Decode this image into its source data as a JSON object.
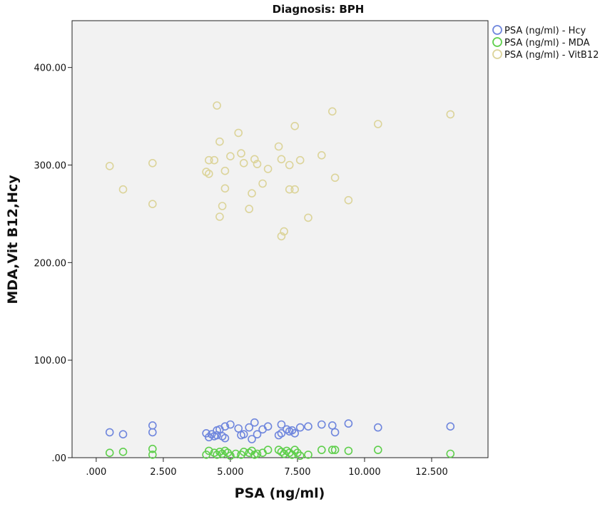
{
  "chart_data": {
    "type": "scatter",
    "title": "Diagnosis: BPH",
    "xlabel": "PSA (ng/ml)",
    "ylabel": "MDA,Vit B12,Hcy",
    "xlim": [
      -0.9,
      14.6
    ],
    "ylim": [
      0,
      448
    ],
    "x_ticks": [
      ".000",
      "2.500",
      "5.000",
      "7.500",
      "10.000",
      "12.500"
    ],
    "x_tick_values": [
      0,
      2.5,
      5,
      7.5,
      10,
      12.5
    ],
    "y_ticks": [
      ".00",
      "100.00",
      "200.00",
      "300.00",
      "400.00"
    ],
    "y_tick_values": [
      0,
      100,
      200,
      300,
      400
    ],
    "grid": false,
    "legend_position": "top-right",
    "series": [
      {
        "name": "PSA (ng/ml) - Hcy",
        "color": "#6f86dd",
        "points": [
          [
            0.5,
            26
          ],
          [
            1.0,
            24
          ],
          [
            2.1,
            33
          ],
          [
            2.1,
            26
          ],
          [
            4.1,
            25
          ],
          [
            4.2,
            21
          ],
          [
            4.3,
            24
          ],
          [
            4.4,
            22
          ],
          [
            4.5,
            28
          ],
          [
            4.5,
            23
          ],
          [
            4.6,
            29
          ],
          [
            4.7,
            22
          ],
          [
            4.8,
            32
          ],
          [
            4.8,
            20
          ],
          [
            5.0,
            34
          ],
          [
            5.3,
            30
          ],
          [
            5.4,
            23
          ],
          [
            5.5,
            24
          ],
          [
            5.7,
            31
          ],
          [
            5.8,
            19
          ],
          [
            5.9,
            36
          ],
          [
            6.0,
            24
          ],
          [
            6.2,
            29
          ],
          [
            6.4,
            32
          ],
          [
            6.8,
            23
          ],
          [
            6.9,
            34
          ],
          [
            6.9,
            25
          ],
          [
            7.1,
            29
          ],
          [
            7.2,
            27
          ],
          [
            7.3,
            28
          ],
          [
            7.4,
            25
          ],
          [
            7.6,
            31
          ],
          [
            7.9,
            32
          ],
          [
            8.4,
            34
          ],
          [
            8.8,
            33
          ],
          [
            8.9,
            26
          ],
          [
            9.4,
            35
          ],
          [
            10.5,
            31
          ],
          [
            13.2,
            32
          ]
        ]
      },
      {
        "name": "PSA (ng/ml) - MDA",
        "color": "#5fcf4c",
        "points": [
          [
            0.5,
            5
          ],
          [
            1.0,
            6
          ],
          [
            2.1,
            9
          ],
          [
            2.1,
            3
          ],
          [
            4.1,
            3
          ],
          [
            4.2,
            7
          ],
          [
            4.4,
            5
          ],
          [
            4.5,
            3
          ],
          [
            4.6,
            6
          ],
          [
            4.7,
            4
          ],
          [
            4.8,
            7
          ],
          [
            4.9,
            5
          ],
          [
            5.0,
            2
          ],
          [
            5.2,
            4
          ],
          [
            5.4,
            3
          ],
          [
            5.5,
            6
          ],
          [
            5.7,
            5
          ],
          [
            5.8,
            7
          ],
          [
            5.9,
            3
          ],
          [
            6.0,
            4
          ],
          [
            6.2,
            5
          ],
          [
            6.4,
            8
          ],
          [
            6.8,
            8
          ],
          [
            6.9,
            6
          ],
          [
            7.0,
            4
          ],
          [
            7.1,
            7
          ],
          [
            7.2,
            5
          ],
          [
            7.3,
            3
          ],
          [
            7.4,
            8
          ],
          [
            7.5,
            5
          ],
          [
            7.6,
            2
          ],
          [
            7.9,
            3
          ],
          [
            8.4,
            8
          ],
          [
            8.8,
            8
          ],
          [
            8.9,
            8
          ],
          [
            9.4,
            7
          ],
          [
            10.5,
            8
          ],
          [
            13.2,
            4
          ]
        ]
      },
      {
        "name": "PSA (ng/ml) - VitB12",
        "color": "#dcd49a",
        "points": [
          [
            0.5,
            299
          ],
          [
            1.0,
            275
          ],
          [
            2.1,
            302
          ],
          [
            2.1,
            260
          ],
          [
            4.1,
            293
          ],
          [
            4.2,
            305
          ],
          [
            4.2,
            291
          ],
          [
            4.4,
            305
          ],
          [
            4.5,
            361
          ],
          [
            4.6,
            247
          ],
          [
            4.6,
            324
          ],
          [
            4.7,
            258
          ],
          [
            4.8,
            294
          ],
          [
            4.8,
            276
          ],
          [
            5.0,
            309
          ],
          [
            5.3,
            333
          ],
          [
            5.4,
            312
          ],
          [
            5.5,
            302
          ],
          [
            5.7,
            255
          ],
          [
            5.8,
            271
          ],
          [
            5.9,
            306
          ],
          [
            6.0,
            301
          ],
          [
            6.2,
            281
          ],
          [
            6.4,
            296
          ],
          [
            6.8,
            319
          ],
          [
            6.9,
            306
          ],
          [
            6.9,
            227
          ],
          [
            7.0,
            232
          ],
          [
            7.2,
            275
          ],
          [
            7.2,
            300
          ],
          [
            7.4,
            275
          ],
          [
            7.4,
            340
          ],
          [
            7.6,
            305
          ],
          [
            7.9,
            246
          ],
          [
            8.4,
            310
          ],
          [
            8.8,
            355
          ],
          [
            8.9,
            287
          ],
          [
            9.4,
            264
          ],
          [
            10.5,
            342
          ],
          [
            13.2,
            352
          ]
        ]
      }
    ]
  }
}
